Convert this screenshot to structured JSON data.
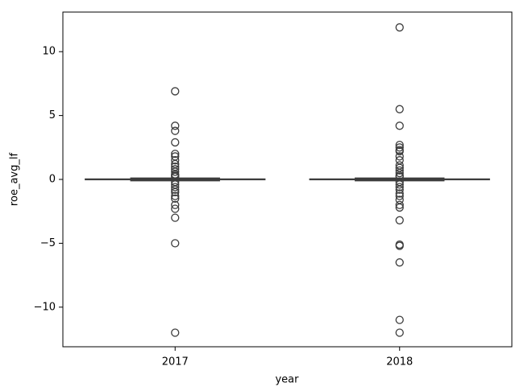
{
  "chart_data": {
    "type": "box",
    "xlabel": "year",
    "ylabel": "roe_avg_lf",
    "categories": [
      "2017",
      "2018"
    ],
    "color": "#3d3d3d",
    "ylim": [
      -13.1,
      13.1
    ],
    "yticks": [
      {
        "value": -10,
        "label": "−10"
      },
      {
        "value": -5,
        "label": "−5"
      },
      0,
      5,
      10
    ],
    "boxes": [
      {
        "q1": -0.02,
        "median": 0,
        "q3": 0.03,
        "whislo": -0.1,
        "whishi": 0.1,
        "fliers": [
          6.9,
          4.2,
          3.8,
          2.9,
          2.0,
          1.8,
          1.5,
          1.2,
          1.0,
          0.8,
          0.6,
          0.4,
          0.3,
          0.2,
          -0.2,
          -0.4,
          -0.6,
          -0.8,
          -1.0,
          -1.3,
          -1.5,
          -2.0,
          -2.3,
          -3.0,
          -5.0,
          -12.0
        ]
      },
      {
        "q1": -0.02,
        "median": 0,
        "q3": 0.03,
        "whislo": -0.1,
        "whishi": 0.1,
        "fliers": [
          11.9,
          5.5,
          4.2,
          2.7,
          2.5,
          2.3,
          2.2,
          1.8,
          1.5,
          1.1,
          0.9,
          0.7,
          0.5,
          0.3,
          0.2,
          -0.2,
          -0.4,
          -0.6,
          -0.8,
          -1.1,
          -1.3,
          -1.6,
          -2.0,
          -2.2,
          -3.2,
          -5.1,
          -5.2,
          -6.5,
          -11.0,
          -12.0
        ]
      }
    ]
  }
}
